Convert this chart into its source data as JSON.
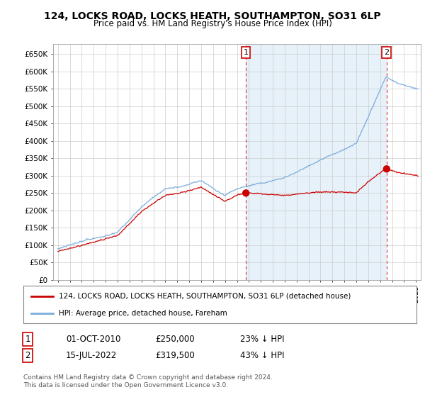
{
  "title": "124, LOCKS ROAD, LOCKS HEATH, SOUTHAMPTON, SO31 6LP",
  "subtitle": "Price paid vs. HM Land Registry's House Price Index (HPI)",
  "ylabel_ticks": [
    "£0",
    "£50K",
    "£100K",
    "£150K",
    "£200K",
    "£250K",
    "£300K",
    "£350K",
    "£400K",
    "£450K",
    "£500K",
    "£550K",
    "£600K",
    "£650K"
  ],
  "ytick_values": [
    0,
    50000,
    100000,
    150000,
    200000,
    250000,
    300000,
    350000,
    400000,
    450000,
    500000,
    550000,
    600000,
    650000
  ],
  "ylim": [
    0,
    680000
  ],
  "hpi_color": "#7aabdb",
  "hpi_fill_color": "#d6e8f5",
  "price_color": "#cc0000",
  "transaction1_date": "01-OCT-2010",
  "transaction1_price": 250000,
  "transaction1_label": "23% ↓ HPI",
  "transaction2_date": "15-JUL-2022",
  "transaction2_price": 319500,
  "transaction2_label": "43% ↓ HPI",
  "legend_line1": "124, LOCKS ROAD, LOCKS HEATH, SOUTHAMPTON, SO31 6LP (detached house)",
  "legend_line2": "HPI: Average price, detached house, Fareham",
  "footnote": "Contains HM Land Registry data © Crown copyright and database right 2024.\nThis data is licensed under the Open Government Licence v3.0.",
  "background_color": "#ffffff",
  "plot_bg_color": "#ffffff",
  "grid_color": "#cccccc"
}
